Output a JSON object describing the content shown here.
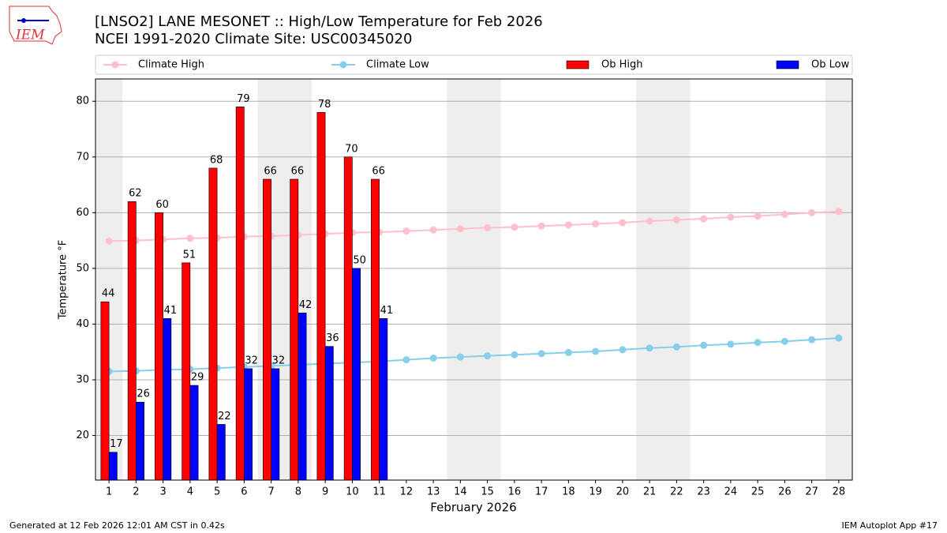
{
  "logo": "IEM",
  "footer": {
    "left": "Generated at 12 Feb 2026 12:01 AM CST in 0.42s",
    "right": "IEM Autoplot App #17"
  },
  "chart_data": {
    "type": "bar",
    "title": "[LNSO2] LANE MESONET :: High/Low Temperature for Feb 2026",
    "subtitle": "NCEI 1991-2020 Climate Site: USC00345020",
    "x_label": "February 2026",
    "y_label": "Temperature °F",
    "x": [
      1,
      2,
      3,
      4,
      5,
      6,
      7,
      8,
      9,
      10,
      11,
      12,
      13,
      14,
      15,
      16,
      17,
      18,
      19,
      20,
      21,
      22,
      23,
      24,
      25,
      26,
      27,
      28
    ],
    "xlim": [
      0.5,
      28.5
    ],
    "xticks": [
      1,
      2,
      3,
      4,
      5,
      6,
      7,
      8,
      9,
      10,
      11,
      12,
      13,
      14,
      15,
      16,
      17,
      18,
      19,
      20,
      21,
      22,
      23,
      24,
      25,
      26,
      27,
      28
    ],
    "ylim": [
      12,
      84
    ],
    "yticks": [
      20,
      30,
      40,
      50,
      60,
      70,
      80
    ],
    "grid": true,
    "shaded_x_ranges": [
      [
        0.5,
        1.5
      ],
      [
        6.5,
        8.5
      ],
      [
        13.5,
        15.5
      ],
      [
        20.5,
        22.5
      ],
      [
        27.5,
        28.5
      ]
    ],
    "series": [
      {
        "name": "Climate High",
        "type": "line",
        "color": "#ffc0cb",
        "values": [
          54.9,
          55.0,
          55.2,
          55.4,
          55.5,
          55.7,
          55.8,
          56.0,
          56.2,
          56.4,
          56.5,
          56.7,
          56.9,
          57.1,
          57.3,
          57.4,
          57.6,
          57.8,
          58.0,
          58.2,
          58.5,
          58.7,
          58.9,
          59.2,
          59.4,
          59.7,
          60.0,
          60.2
        ]
      },
      {
        "name": "Climate Low",
        "type": "line",
        "color": "#87ceeb",
        "values": [
          31.5,
          31.6,
          31.8,
          31.9,
          32.1,
          32.3,
          32.5,
          32.7,
          32.9,
          33.1,
          33.3,
          33.6,
          33.9,
          34.1,
          34.3,
          34.5,
          34.7,
          34.9,
          35.1,
          35.4,
          35.7,
          35.9,
          36.2,
          36.4,
          36.7,
          36.9,
          37.2,
          37.5
        ]
      },
      {
        "name": "Ob High",
        "type": "bar",
        "color": "#ff0000",
        "values": [
          44,
          62,
          60,
          51,
          68,
          79,
          66,
          66,
          78,
          70,
          66,
          null,
          null,
          null,
          null,
          null,
          null,
          null,
          null,
          null,
          null,
          null,
          null,
          null,
          null,
          null,
          null,
          null
        ]
      },
      {
        "name": "Ob Low",
        "type": "bar",
        "color": "#0000ff",
        "values": [
          17,
          26,
          41,
          29,
          22,
          32,
          32,
          42,
          36,
          50,
          41,
          null,
          null,
          null,
          null,
          null,
          null,
          null,
          null,
          null,
          null,
          null,
          null,
          null,
          null,
          null,
          null,
          null
        ]
      }
    ]
  }
}
